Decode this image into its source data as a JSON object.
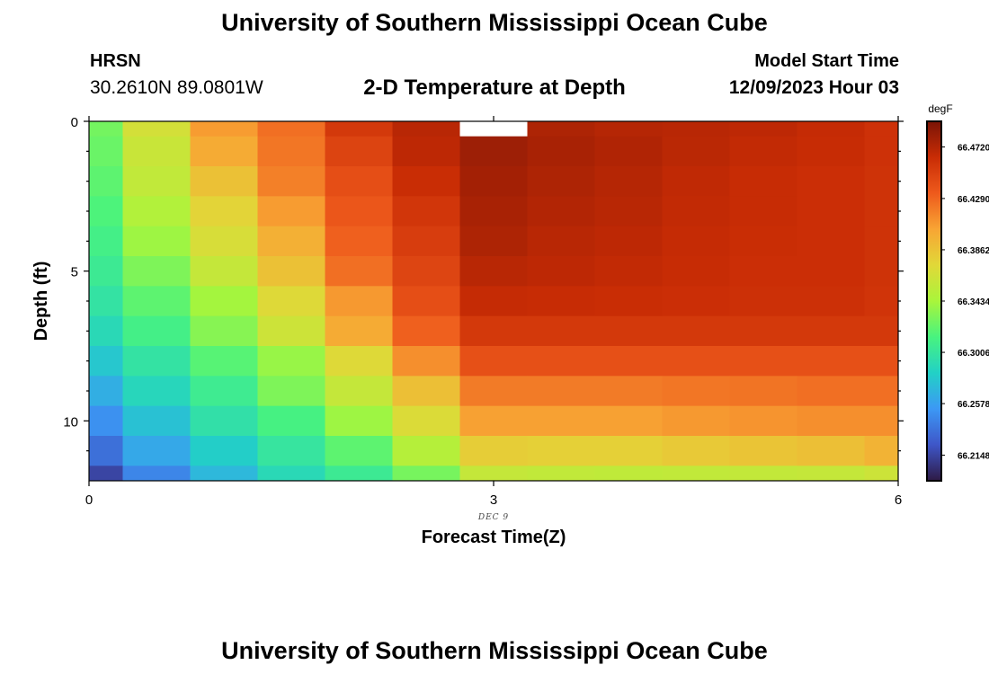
{
  "page": {
    "title": "University of Southern Mississippi Ocean Cube",
    "station_name": "HRSN",
    "station_coords": "30.2610N  89.0801W",
    "plot_title": "2-D Temperature at Depth",
    "model_label": "Model Start Time",
    "model_time": "12/09/2023 Hour 03",
    "bottom_title": "University of Southern Mississippi Ocean Cube"
  },
  "chart_data": {
    "type": "heatmap",
    "title": "2-D Temperature at Depth",
    "xlabel": "Forecast Time(Z)",
    "ylabel": "Depth (ft)",
    "x_sublabel": "DEC 9",
    "xlim": [
      0,
      6
    ],
    "ylim": [
      0,
      12
    ],
    "y_inverted": true,
    "x_ticks": [
      0,
      3,
      6
    ],
    "x_tick_labels": [
      "0",
      "3",
      "6"
    ],
    "y_ticks": [
      0,
      5,
      10
    ],
    "y_tick_labels": [
      "0",
      "5",
      "10"
    ],
    "colorbar": {
      "unit": "degF",
      "min": 66.1934,
      "max": 66.4934,
      "tick_values": [
        66.472,
        66.429,
        66.3862,
        66.3434,
        66.3006,
        66.2578,
        66.2148
      ],
      "tick_labels": [
        "66.4720",
        "66.4290",
        "66.3862",
        "66.3434",
        "66.3006",
        "66.2578",
        "66.2148"
      ],
      "colors": [
        "#2e1a44",
        "#3e56c8",
        "#3c98f5",
        "#22d1c6",
        "#48f37f",
        "#a9f53b",
        "#e1d838",
        "#f8a534",
        "#ee5a1c",
        "#c92c05",
        "#7a1406"
      ]
    },
    "x_edges": [
      0,
      0.25,
      0.75,
      1.25,
      1.75,
      2.25,
      2.75,
      3.25,
      3.75,
      4.25,
      4.75,
      5.25,
      5.75,
      6
    ],
    "y_edges": [
      0,
      0.5,
      1.5,
      2.5,
      3.5,
      4.5,
      5.5,
      6.5,
      7.5,
      8.5,
      9.5,
      10.5,
      11.5,
      12
    ],
    "values": [
      [
        66.327,
        66.366,
        66.407,
        66.425,
        66.455,
        66.47,
        null,
        66.474,
        66.471,
        66.47,
        66.468,
        66.465,
        66.46
      ],
      [
        66.324,
        66.36,
        66.4,
        66.422,
        66.448,
        66.468,
        66.48,
        66.476,
        66.473,
        66.469,
        66.466,
        66.464,
        66.46
      ],
      [
        66.32,
        66.356,
        66.387,
        66.418,
        66.441,
        66.463,
        66.478,
        66.474,
        66.471,
        66.467,
        66.464,
        66.462,
        66.459
      ],
      [
        66.315,
        66.348,
        66.376,
        66.407,
        66.436,
        66.457,
        66.476,
        66.472,
        66.47,
        66.466,
        66.464,
        66.462,
        66.459
      ],
      [
        66.31,
        66.34,
        66.368,
        66.397,
        66.431,
        66.452,
        66.474,
        66.47,
        66.468,
        66.465,
        66.463,
        66.462,
        66.459
      ],
      [
        66.305,
        66.33,
        66.358,
        66.387,
        66.425,
        66.447,
        66.47,
        66.468,
        66.466,
        66.464,
        66.462,
        66.462,
        66.459
      ],
      [
        66.298,
        66.32,
        66.342,
        66.372,
        66.408,
        66.441,
        66.465,
        66.464,
        66.463,
        66.462,
        66.461,
        66.461,
        66.458
      ],
      [
        66.29,
        66.31,
        66.333,
        66.362,
        66.4,
        66.431,
        66.455,
        66.455,
        66.455,
        66.455,
        66.455,
        66.455,
        66.455
      ],
      [
        66.278,
        66.298,
        66.318,
        66.338,
        66.372,
        66.412,
        66.44,
        66.44,
        66.44,
        66.44,
        66.44,
        66.44,
        66.44
      ],
      [
        66.265,
        66.288,
        66.306,
        66.33,
        66.358,
        66.388,
        66.42,
        66.42,
        66.42,
        66.422,
        66.423,
        66.425,
        66.425
      ],
      [
        66.25,
        66.275,
        66.296,
        66.312,
        66.34,
        66.37,
        66.405,
        66.405,
        66.405,
        66.408,
        66.41,
        66.412,
        66.412
      ],
      [
        66.235,
        66.262,
        66.282,
        66.3,
        66.32,
        66.35,
        66.38,
        66.378,
        66.378,
        66.382,
        66.385,
        66.388,
        66.395
      ],
      [
        66.215,
        66.245,
        66.27,
        66.29,
        66.305,
        66.328,
        66.358,
        66.356,
        66.355,
        66.356,
        66.357,
        66.358,
        66.362
      ]
    ]
  }
}
